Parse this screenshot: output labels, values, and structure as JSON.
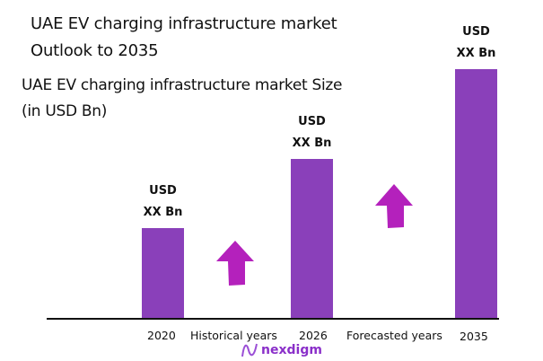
{
  "chart_data": {
    "type": "bar",
    "title": "UAE EV charging infrastructure market Outlook to 2035",
    "title_lines": [
      "UAE EV charging infrastructure market",
      "Outlook to 2035"
    ],
    "subtitle_lines": [
      "UAE EV charging infrastructure market Size",
      "(in USD Bn)"
    ],
    "categories": [
      "2020",
      "2026",
      "2035"
    ],
    "values_relative": [
      1.0,
      1.77,
      2.77
    ],
    "data_labels": [
      [
        "USD",
        "XX Bn"
      ],
      [
        "USD",
        "XX Bn"
      ],
      [
        "USD",
        "XX Bn"
      ]
    ],
    "annotations": [
      "Historical years",
      "Forecasted years"
    ],
    "grid": false,
    "bar_color": "#8a40ba",
    "arrow_color": "#b421bc"
  },
  "logo": {
    "text": "nexdigm",
    "color": "#8a2fc9"
  }
}
